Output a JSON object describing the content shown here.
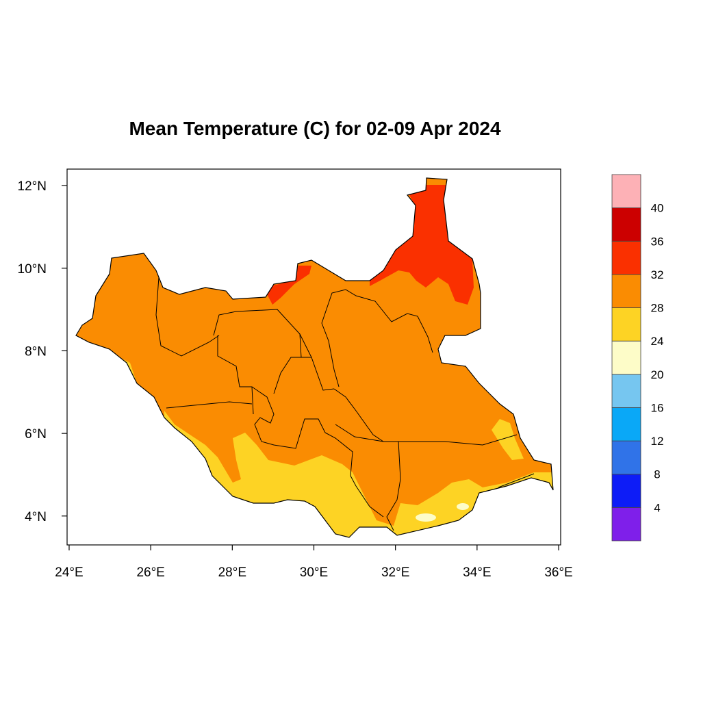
{
  "title": "Mean Temperature (C) for 02-09 Apr 2024",
  "map": {
    "region": "South Sudan",
    "x_axis": {
      "ticks": [
        {
          "value": 24,
          "label": "24°E"
        },
        {
          "value": 26,
          "label": "26°E"
        },
        {
          "value": 28,
          "label": "28°E"
        },
        {
          "value": 30,
          "label": "30°E"
        },
        {
          "value": 32,
          "label": "32°E"
        },
        {
          "value": 34,
          "label": "34°E"
        },
        {
          "value": 36,
          "label": "36°E"
        }
      ]
    },
    "y_axis": {
      "ticks": [
        {
          "value": 4,
          "label": "4°N"
        },
        {
          "value": 6,
          "label": "6°N"
        },
        {
          "value": 8,
          "label": "8°N"
        },
        {
          "value": 10,
          "label": "10°N"
        },
        {
          "value": 12,
          "label": "12°N"
        }
      ]
    },
    "lon_range": [
      23.95,
      36.05
    ],
    "lat_range": [
      3.3,
      12.4
    ],
    "colorbar": {
      "labels": [
        "4",
        "8",
        "12",
        "16",
        "20",
        "24",
        "28",
        "32",
        "36",
        "40"
      ],
      "colors": [
        "#7f1fea",
        "#0d1cf7",
        "#3073e8",
        "#0aa8f7",
        "#76c6f0",
        "#fdfcc8",
        "#fdd324",
        "#fa8c02",
        "#fa3000",
        "#cc0000",
        "#fdb1b6"
      ]
    }
  }
}
